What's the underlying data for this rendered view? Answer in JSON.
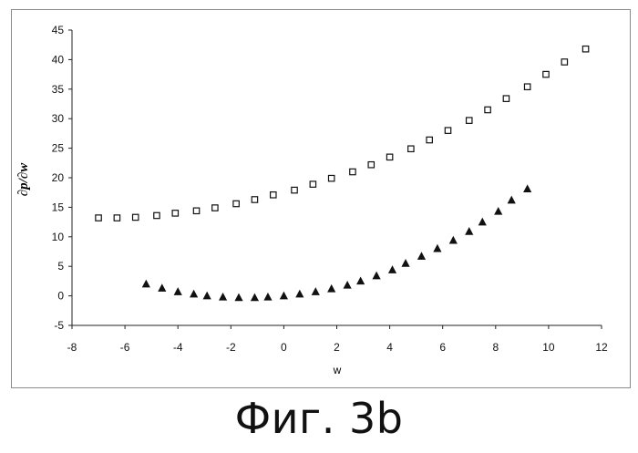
{
  "caption": "Фиг. 3b",
  "chart_data": {
    "type": "scatter",
    "title": "",
    "xlabel": "w",
    "ylabel": "∂p/∂w",
    "xlim": [
      -8,
      12
    ],
    "ylim": [
      -5,
      45
    ],
    "x_ticks": [
      -8,
      -6,
      -4,
      -2,
      0,
      2,
      4,
      6,
      8,
      10,
      12
    ],
    "y_ticks": [
      -5,
      0,
      5,
      10,
      15,
      20,
      25,
      30,
      35,
      40,
      45
    ],
    "grid": false,
    "legend": "none",
    "series": [
      {
        "marker": "square-open",
        "color": "#111111",
        "points": [
          [
            -7.0,
            13.2
          ],
          [
            -6.3,
            13.2
          ],
          [
            -5.6,
            13.3
          ],
          [
            -4.8,
            13.6
          ],
          [
            -4.1,
            14.0
          ],
          [
            -3.3,
            14.4
          ],
          [
            -2.6,
            14.9
          ],
          [
            -1.8,
            15.6
          ],
          [
            -1.1,
            16.3
          ],
          [
            -0.4,
            17.1
          ],
          [
            0.4,
            17.9
          ],
          [
            1.1,
            18.9
          ],
          [
            1.8,
            19.9
          ],
          [
            2.6,
            21.0
          ],
          [
            3.3,
            22.2
          ],
          [
            4.0,
            23.5
          ],
          [
            4.8,
            24.9
          ],
          [
            5.5,
            26.4
          ],
          [
            6.2,
            28.0
          ],
          [
            7.0,
            29.7
          ],
          [
            7.7,
            31.5
          ],
          [
            8.4,
            33.4
          ],
          [
            9.2,
            35.4
          ],
          [
            9.9,
            37.5
          ],
          [
            10.6,
            39.6
          ],
          [
            11.4,
            41.8
          ]
        ]
      },
      {
        "marker": "triangle-filled",
        "color": "#111111",
        "points": [
          [
            -5.2,
            2.0
          ],
          [
            -4.6,
            1.3
          ],
          [
            -4.0,
            0.7
          ],
          [
            -3.4,
            0.3
          ],
          [
            -2.9,
            0.0
          ],
          [
            -2.3,
            -0.2
          ],
          [
            -1.7,
            -0.3
          ],
          [
            -1.1,
            -0.3
          ],
          [
            -0.6,
            -0.2
          ],
          [
            0.0,
            0.0
          ],
          [
            0.6,
            0.3
          ],
          [
            1.2,
            0.7
          ],
          [
            1.8,
            1.2
          ],
          [
            2.4,
            1.8
          ],
          [
            2.9,
            2.5
          ],
          [
            3.5,
            3.4
          ],
          [
            4.1,
            4.4
          ],
          [
            4.6,
            5.5
          ],
          [
            5.2,
            6.7
          ],
          [
            5.8,
            8.0
          ],
          [
            6.4,
            9.4
          ],
          [
            7.0,
            10.9
          ],
          [
            7.5,
            12.5
          ],
          [
            8.1,
            14.3
          ],
          [
            8.6,
            16.2
          ],
          [
            9.2,
            18.1
          ]
        ]
      }
    ]
  }
}
